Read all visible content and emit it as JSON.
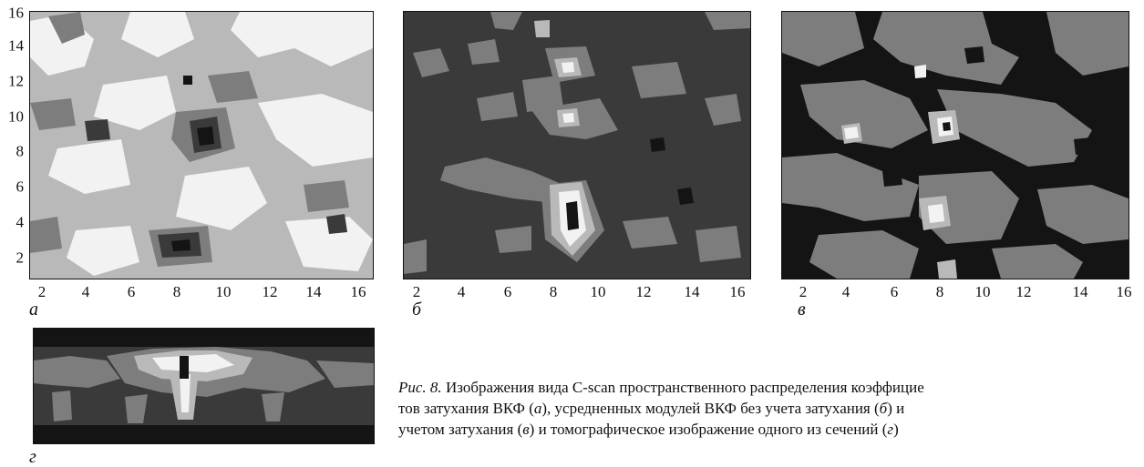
{
  "panels": {
    "a": {
      "label": "а",
      "x_ticks": [
        "2",
        "4",
        "6",
        "8",
        "10",
        "12",
        "14",
        "16"
      ],
      "y_ticks": [
        "16",
        "14",
        "12",
        "10",
        "8",
        "6",
        "4",
        "2"
      ]
    },
    "b": {
      "label": "б",
      "x_ticks": [
        "2",
        "4",
        "6",
        "8",
        "10",
        "12",
        "14",
        "16"
      ]
    },
    "v": {
      "label": "в",
      "x_ticks": [
        "2",
        "4",
        "6",
        "8",
        "10",
        "12",
        "14",
        "16"
      ]
    },
    "g": {
      "label": "г"
    }
  },
  "caption": {
    "fig_label": "Рис. 8.",
    "line1": " Изображения вида C-scan пространственного распределения коэффицие",
    "line2_a": "тов затухания ВКФ (",
    "line2_b": "), усредненных модулей ВКФ без учета затухания (",
    "line2_c": ") и",
    "line3_a": "учетом затухания (",
    "line3_b": ") и томографическое изображение одного из сечений (",
    "line3_c": ")",
    "ref_a": "а",
    "ref_b": "б",
    "ref_v": "в",
    "ref_g": "г"
  },
  "colors": {
    "level0": "#141414",
    "level1": "#3a3a3a",
    "level2": "#7d7d7d",
    "level3": "#b9b9b9",
    "level4": "#f2f2f2"
  }
}
